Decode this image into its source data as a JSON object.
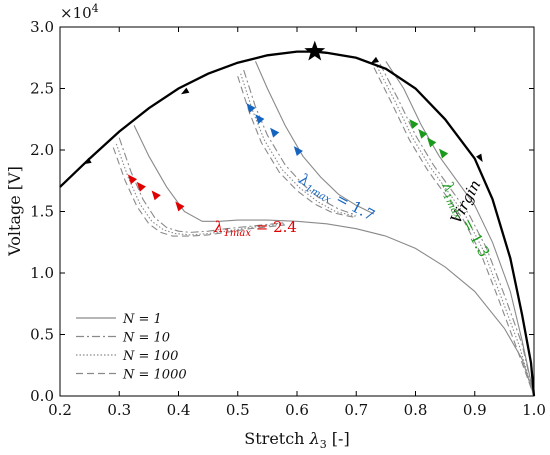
{
  "chart_data": {
    "type": "line",
    "xlabel": "Stretch λ3 [-]",
    "ylabel": "Voltage [V]",
    "y_multiplier": "×10^4",
    "xlim": [
      0.2,
      1.0
    ],
    "ylim": [
      0.0,
      3.0
    ],
    "xticks": [
      "0.2",
      "0.3",
      "0.4",
      "0.5",
      "0.6",
      "0.7",
      "0.8",
      "0.9",
      "1.0"
    ],
    "yticks": [
      "0.0",
      "0.5",
      "1.0",
      "1.5",
      "2.0",
      "2.5",
      "3.0"
    ],
    "grid": false,
    "legend_position": "bottom-left",
    "legend": [
      {
        "label": "N = 1",
        "style": "solid"
      },
      {
        "label": "N = 10",
        "style": "dashdot"
      },
      {
        "label": "N = 100",
        "style": "dotted"
      },
      {
        "label": "N = 1000",
        "style": "dashed"
      }
    ],
    "virgin_curve": {
      "label": "Virgin",
      "color": "#000000",
      "peak": {
        "x": 0.63,
        "y": 2.8
      },
      "x": [
        0.2,
        0.25,
        0.3,
        0.35,
        0.4,
        0.45,
        0.5,
        0.55,
        0.6,
        0.63,
        0.65,
        0.7,
        0.75,
        0.8,
        0.85,
        0.9,
        0.93,
        0.96,
        0.98,
        0.995,
        1.0
      ],
      "y": [
        1.7,
        1.93,
        2.15,
        2.34,
        2.5,
        2.62,
        2.71,
        2.77,
        2.8,
        2.8,
        2.79,
        2.75,
        2.66,
        2.5,
        2.25,
        1.93,
        1.6,
        1.12,
        0.66,
        0.27,
        0.0
      ]
    },
    "cyclic_groups": [
      {
        "label": "λ1max = 2.4",
        "color": "#e00000",
        "arrows": [
          {
            "x": 0.32,
            "y": 1.77
          },
          {
            "x": 0.335,
            "y": 1.71
          },
          {
            "x": 0.36,
            "y": 1.64
          },
          {
            "x": 0.4,
            "y": 1.55
          }
        ],
        "curves": [
          {
            "style": "solid",
            "x": [
              0.325,
              0.35,
              0.38,
              0.41,
              0.44,
              0.47,
              0.5,
              0.55,
              0.6,
              0.65,
              0.7,
              0.75,
              0.8,
              0.85,
              0.9,
              0.95,
              0.98,
              1.0
            ],
            "y": [
              2.2,
              1.95,
              1.7,
              1.5,
              1.42,
              1.42,
              1.43,
              1.43,
              1.42,
              1.4,
              1.36,
              1.3,
              1.2,
              1.05,
              0.85,
              0.55,
              0.3,
              0.0
            ]
          },
          {
            "style": "dashdot",
            "x": [
              0.3,
              0.32,
              0.34,
              0.36,
              0.38,
              0.4,
              0.42,
              0.45,
              0.48,
              0.52,
              0.58
            ],
            "y": [
              2.1,
              1.82,
              1.6,
              1.45,
              1.37,
              1.34,
              1.33,
              1.34,
              1.36,
              1.38,
              1.41
            ]
          },
          {
            "style": "dotted",
            "x": [
              0.295,
              0.315,
              0.335,
              0.355,
              0.375,
              0.395,
              0.42,
              0.45,
              0.48,
              0.52,
              0.58
            ],
            "y": [
              2.05,
              1.78,
              1.56,
              1.42,
              1.35,
              1.32,
              1.31,
              1.32,
              1.34,
              1.37,
              1.4
            ]
          },
          {
            "style": "dashed",
            "x": [
              0.29,
              0.31,
              0.33,
              0.35,
              0.37,
              0.39,
              0.42,
              0.45,
              0.48,
              0.52,
              0.58
            ],
            "y": [
              2.02,
              1.75,
              1.54,
              1.4,
              1.33,
              1.3,
              1.3,
              1.31,
              1.33,
              1.36,
              1.39
            ]
          }
        ]
      },
      {
        "label": "λ1max = 1.7",
        "color": "#1565c0",
        "arrows": [
          {
            "x": 0.52,
            "y": 2.35
          },
          {
            "x": 0.535,
            "y": 2.26
          },
          {
            "x": 0.56,
            "y": 2.15
          },
          {
            "x": 0.6,
            "y": 2.0
          }
        ],
        "curves": [
          {
            "style": "solid",
            "x": [
              0.53,
              0.55,
              0.58,
              0.61,
              0.64,
              0.67,
              0.7,
              0.73
            ],
            "y": [
              2.72,
              2.5,
              2.2,
              1.95,
              1.78,
              1.64,
              1.55,
              1.48
            ]
          },
          {
            "style": "dashdot",
            "x": [
              0.51,
              0.53,
              0.55,
              0.58,
              0.61,
              0.64,
              0.67,
              0.7
            ],
            "y": [
              2.65,
              2.35,
              2.12,
              1.88,
              1.72,
              1.6,
              1.52,
              1.47
            ]
          },
          {
            "style": "dotted",
            "x": [
              0.505,
              0.525,
              0.545,
              0.575,
              0.605,
              0.635,
              0.665,
              0.7
            ],
            "y": [
              2.62,
              2.32,
              2.08,
              1.84,
              1.69,
              1.58,
              1.5,
              1.46
            ]
          },
          {
            "style": "dashed",
            "x": [
              0.5,
              0.52,
              0.54,
              0.57,
              0.6,
              0.63,
              0.66,
              0.7
            ],
            "y": [
              2.6,
              2.3,
              2.06,
              1.82,
              1.67,
              1.56,
              1.49,
              1.45
            ]
          }
        ]
      },
      {
        "label": "λ1max = 1.3",
        "color": "#1a9a1a",
        "arrows": [
          {
            "x": 0.795,
            "y": 2.22
          },
          {
            "x": 0.81,
            "y": 2.14
          },
          {
            "x": 0.825,
            "y": 2.07
          },
          {
            "x": 0.845,
            "y": 1.98
          }
        ],
        "curves": [
          {
            "style": "solid",
            "x": [
              0.75,
              0.78,
              0.81,
              0.84,
              0.87,
              0.9,
              0.93,
              0.96,
              0.98,
              1.0
            ],
            "y": [
              2.72,
              2.5,
              2.2,
              1.95,
              1.75,
              1.55,
              1.25,
              0.85,
              0.45,
              0.0
            ]
          },
          {
            "style": "dashdot",
            "x": [
              0.74,
              0.77,
              0.8,
              0.83,
              0.86,
              0.89,
              0.92,
              0.95,
              0.98,
              1.0
            ],
            "y": [
              2.7,
              2.42,
              2.12,
              1.88,
              1.68,
              1.48,
              1.2,
              0.82,
              0.42,
              0.0
            ]
          },
          {
            "style": "dotted",
            "x": [
              0.735,
              0.765,
              0.795,
              0.825,
              0.855,
              0.885,
              0.915,
              0.945,
              0.975,
              1.0
            ],
            "y": [
              2.68,
              2.4,
              2.1,
              1.86,
              1.66,
              1.46,
              1.18,
              0.8,
              0.41,
              0.0
            ]
          },
          {
            "style": "dashed",
            "x": [
              0.73,
              0.76,
              0.79,
              0.82,
              0.85,
              0.88,
              0.91,
              0.94,
              0.97,
              1.0
            ],
            "y": [
              2.67,
              2.38,
              2.08,
              1.84,
              1.64,
              1.44,
              1.16,
              0.79,
              0.4,
              0.0
            ]
          }
        ]
      }
    ]
  }
}
